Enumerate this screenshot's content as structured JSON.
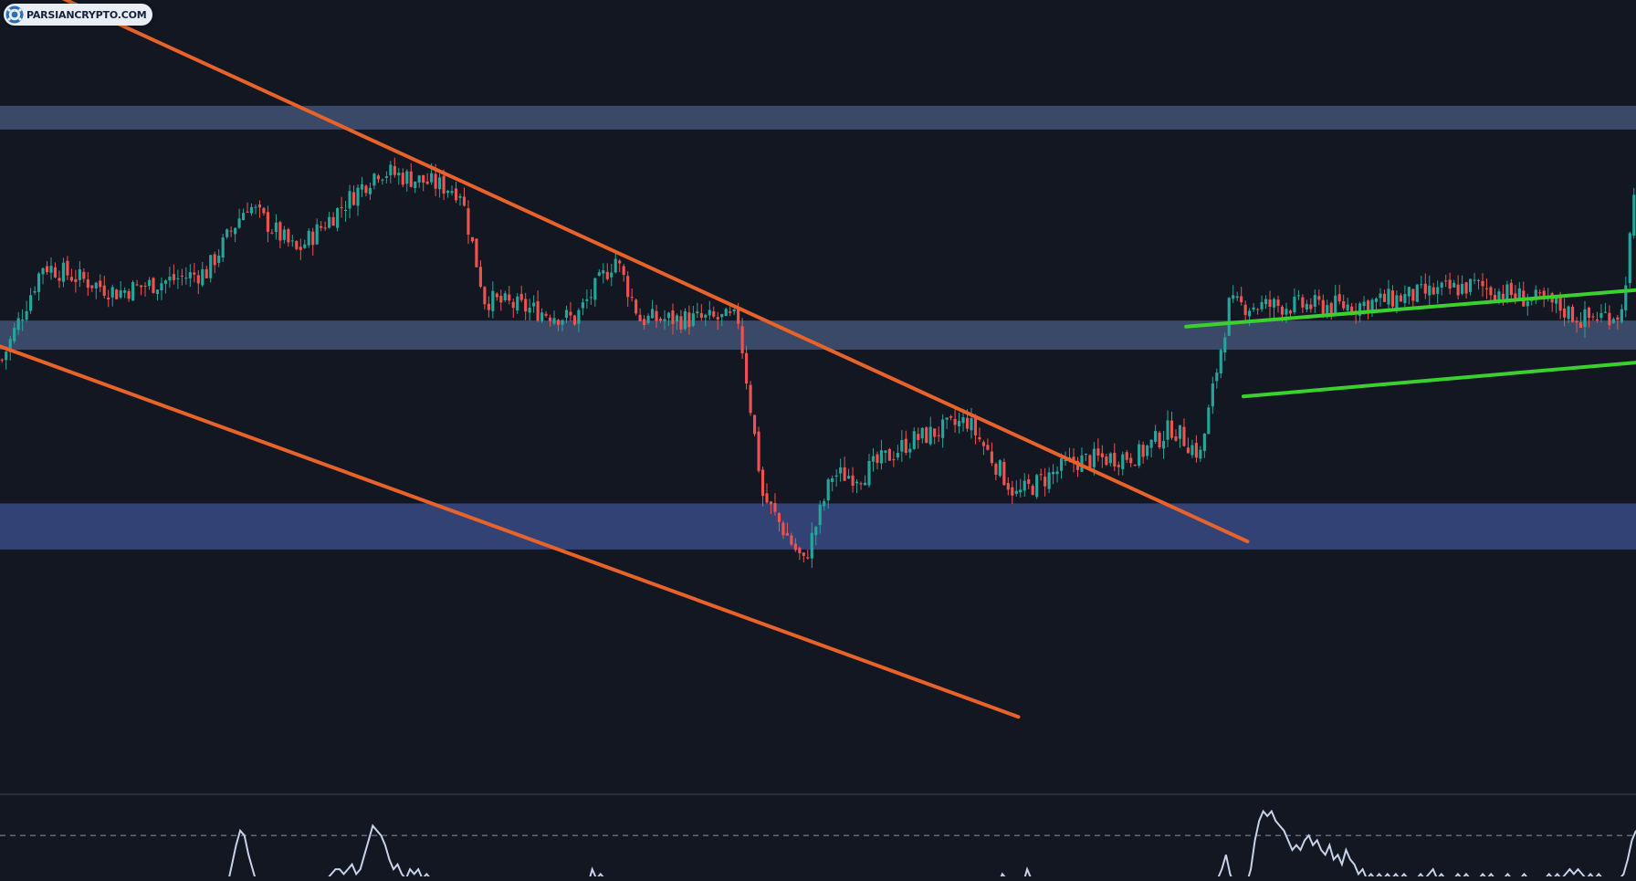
{
  "watermark": {
    "text": "PARSIANCRYPTO.COM"
  },
  "colors": {
    "background": "#131722",
    "up": "#26a69a",
    "down": "#ef5350",
    "zone": "#3b4c6b",
    "zone_strong": "#35447a",
    "channel_orange": "#e8632a",
    "channel_green": "#3ad12f",
    "oscillator": "#c7d3ea",
    "divider": "#2a2e39"
  },
  "chart_data": {
    "type": "candlestick",
    "title": "",
    "xlabel": "",
    "ylabel": "",
    "price_range": [
      0,
      100
    ],
    "bar_count": 400,
    "key_points": [
      [
        0,
        52
      ],
      [
        10,
        66
      ],
      [
        28,
        62
      ],
      [
        50,
        65
      ],
      [
        60,
        75
      ],
      [
        72,
        68
      ],
      [
        92,
        80
      ],
      [
        112,
        77
      ],
      [
        118,
        61
      ],
      [
        140,
        58
      ],
      [
        150,
        67
      ],
      [
        156,
        58
      ],
      [
        180,
        58
      ],
      [
        186,
        32
      ],
      [
        196,
        22
      ],
      [
        203,
        35
      ],
      [
        210,
        35
      ],
      [
        222,
        40
      ],
      [
        236,
        43
      ],
      [
        248,
        32
      ],
      [
        262,
        37
      ],
      [
        278,
        38
      ],
      [
        286,
        42
      ],
      [
        293,
        38
      ],
      [
        300,
        60
      ],
      [
        330,
        60
      ],
      [
        360,
        63
      ],
      [
        380,
        60
      ],
      [
        386,
        58
      ],
      [
        396,
        59
      ],
      [
        399,
        75
      ]
    ],
    "zones": [
      {
        "name": "resistance",
        "price_low": 86,
        "price_high": 89.5
      },
      {
        "name": "pivot",
        "price_low": 53.5,
        "price_high": 57.8
      },
      {
        "name": "support",
        "price_low": 24,
        "price_high": 30.8
      }
    ],
    "trendlines": [
      {
        "name": "descending-channel-upper",
        "color": "orange",
        "from": [
          0,
          109.6
        ],
        "to": [
          305,
          25.2
        ]
      },
      {
        "name": "descending-channel-lower",
        "color": "orange",
        "from": [
          0,
          54
        ],
        "to": [
          249,
          -0.7
        ]
      },
      {
        "name": "ascending-channel-upper",
        "color": "green",
        "from": [
          290,
          56.9
        ],
        "to": [
          400,
          62.3
        ]
      },
      {
        "name": "ascending-channel-lower",
        "color": "green",
        "from": [
          304,
          46.6
        ],
        "to": [
          400,
          51.6
        ]
      }
    ],
    "oscillator": {
      "grid": false,
      "reference_level": 1,
      "values": [
        0,
        0,
        0,
        0,
        0,
        0,
        0,
        0,
        0,
        0,
        0,
        0,
        0,
        0,
        0,
        0,
        0,
        0,
        0,
        0,
        0,
        0,
        0,
        0,
        0,
        0,
        0,
        0,
        0,
        0,
        0,
        0,
        0,
        0,
        0,
        0,
        0,
        0,
        0,
        0,
        0,
        0,
        0,
        0,
        0,
        0,
        0,
        0,
        0,
        0,
        0,
        0,
        0,
        0,
        0,
        0,
        0.4,
        0.8,
        1.1,
        1.0,
        0.6,
        0.3,
        0,
        0,
        0,
        0,
        0,
        0,
        0,
        0,
        0,
        0,
        0,
        0,
        0,
        0,
        0,
        0,
        0,
        0.1,
        0.2,
        0.3,
        0.3,
        0.2,
        0.3,
        0.4,
        0.2,
        0.3,
        0.6,
        0.9,
        1.2,
        1.1,
        1.0,
        0.8,
        0.5,
        0.3,
        0.4,
        0.2,
        0.1,
        0.3,
        0.2,
        0.3,
        0.1,
        0.2,
        0.1,
        0,
        0,
        0,
        0,
        0,
        0,
        0,
        0,
        0,
        0,
        0,
        0,
        0,
        0,
        0,
        0,
        0,
        0,
        0,
        0,
        0,
        0,
        0,
        0,
        0,
        0,
        0,
        0,
        0,
        0,
        0,
        0,
        0,
        0,
        0,
        0,
        0,
        0,
        0.3,
        0.1,
        0.2,
        0.1,
        0,
        0,
        0,
        0,
        0,
        0,
        0,
        0,
        0,
        0,
        0,
        0,
        0,
        0,
        0,
        0,
        0,
        0,
        0,
        0,
        0,
        0,
        0,
        0,
        0,
        0,
        0,
        0,
        0,
        0,
        0,
        0,
        0,
        0,
        0,
        0,
        0,
        0,
        0,
        0,
        0,
        0,
        0,
        0,
        0,
        0,
        0,
        0,
        0,
        0,
        0,
        0,
        0,
        0,
        0,
        0,
        0,
        0,
        0,
        0,
        0,
        0,
        0,
        0,
        0,
        0,
        0,
        0,
        0,
        0,
        0,
        0,
        0,
        0,
        0,
        0,
        0,
        0,
        0,
        0,
        0,
        0,
        0,
        0,
        0,
        0,
        0,
        0,
        0,
        0,
        0,
        0,
        0,
        0,
        0,
        0.2,
        0.1,
        0.1,
        0.1,
        0,
        0,
        0.3,
        0.1,
        0,
        0,
        0,
        0,
        0,
        0,
        0,
        0,
        0,
        0,
        0,
        0,
        0,
        0,
        0,
        0,
        0,
        0,
        0,
        0,
        0,
        0,
        0,
        0,
        0,
        0,
        0,
        0,
        0,
        0,
        0,
        0,
        0,
        0,
        0,
        0,
        0,
        0,
        0,
        0,
        0,
        0,
        0,
        0,
        0.1,
        0.3,
        0.6,
        0.2,
        0,
        0,
        0,
        0,
        0.3,
        0.9,
        1.3,
        1.5,
        1.4,
        1.5,
        1.3,
        1.2,
        1.1,
        0.9,
        0.7,
        0.8,
        0.7,
        0.9,
        1.0,
        0.8,
        0.9,
        0.7,
        0.6,
        0.8,
        0.5,
        0.6,
        0.4,
        0.7,
        0.5,
        0.4,
        0.2,
        0.3,
        0.1,
        0.2,
        0.1,
        0.2,
        0.1,
        0.2,
        0.1,
        0.2,
        0.1,
        0.2,
        0.1,
        0,
        0.1,
        0.2,
        0.1,
        0.2,
        0.3,
        0.1,
        0.2,
        0.1,
        0,
        0.1,
        0.2,
        0.1,
        0.2,
        0.1,
        0,
        0.1,
        0.2,
        0.1,
        0.2,
        0.1,
        0,
        0.1,
        0.2,
        0.1,
        0,
        0.1,
        0.2,
        0.1,
        0,
        0.1,
        0,
        0.1,
        0.2,
        0.1,
        0.2,
        0.1,
        0.2,
        0.3,
        0.2,
        0.3,
        0.2,
        0.1,
        0.2,
        0.1,
        0.2,
        0.1,
        0,
        0.1,
        0,
        0.1,
        0.2,
        0.5,
        0.9,
        1.1
      ]
    }
  }
}
